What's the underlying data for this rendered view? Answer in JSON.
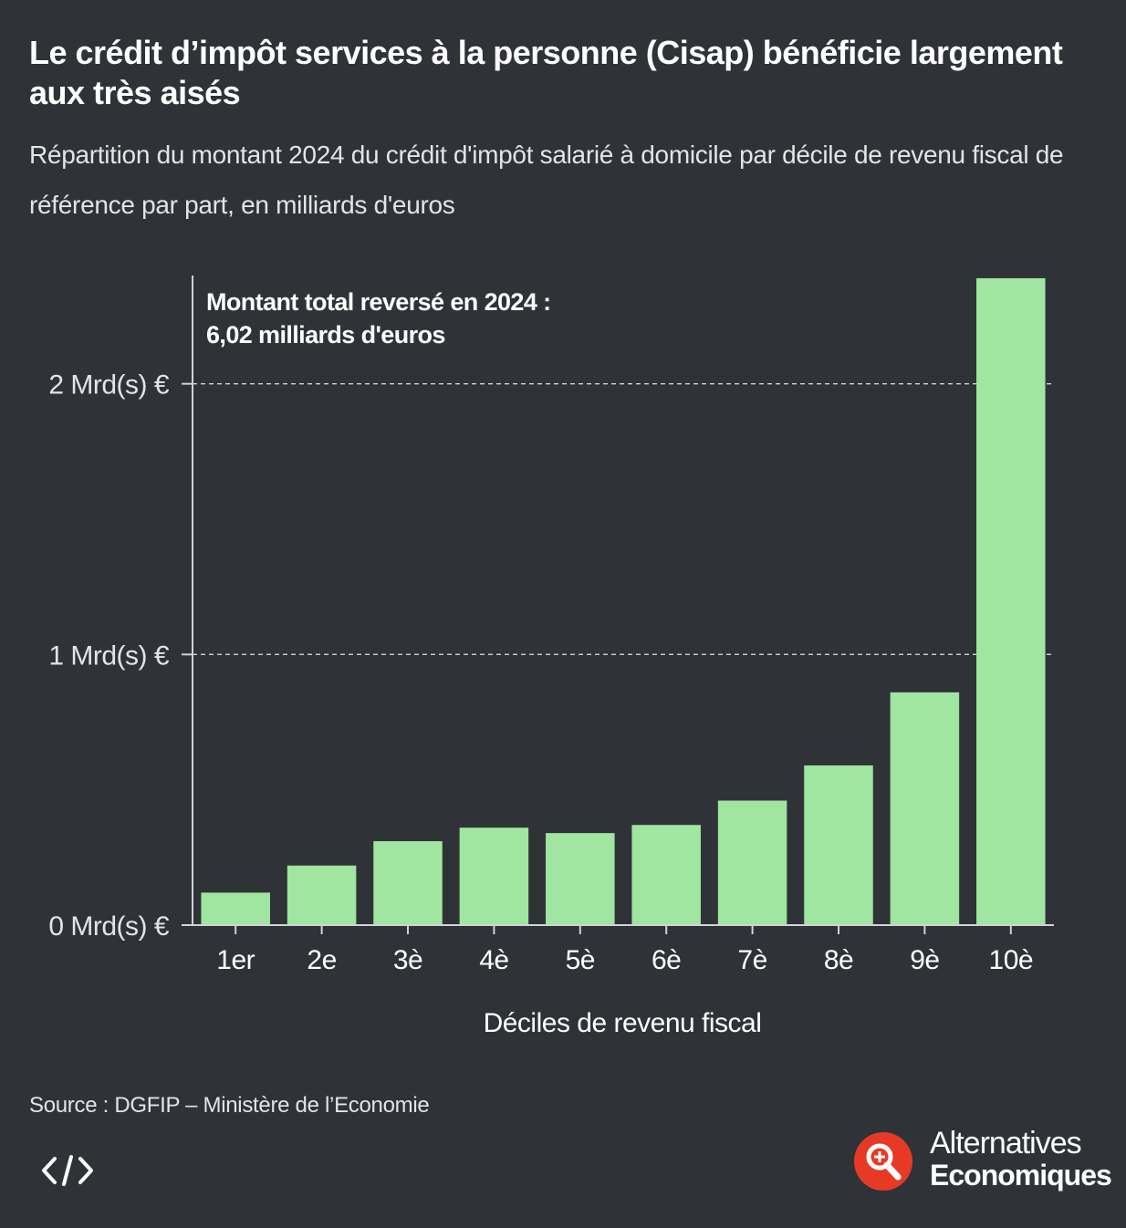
{
  "title": "Le crédit d’impôt services à la personne (Cisap) bénéficie largement aux très aisés",
  "subtitle": "Répartition du montant 2024 du crédit d'impôt salarié à domicile par décile de revenu fiscal de référence par part, en milliards d'euros",
  "annotation": {
    "line1": "Montant total reversé en 2024 :",
    "line2": "6,02 milliards d'euros"
  },
  "source": "Source : DGFIP – Ministère de l’Economie",
  "brand": {
    "line1": "Alternatives",
    "line2": "Economiques",
    "color": "#e63a27"
  },
  "embed_icon": "code-embed-icon",
  "chart_data": {
    "type": "bar",
    "categories": [
      "1er",
      "2e",
      "3è",
      "4è",
      "5è",
      "6è",
      "7è",
      "8è",
      "9è",
      "10è"
    ],
    "values": [
      0.12,
      0.22,
      0.31,
      0.36,
      0.34,
      0.37,
      0.46,
      0.59,
      0.86,
      2.39
    ],
    "xlabel": "Déciles de revenu fiscal",
    "ylabel": "",
    "ylim": [
      0,
      2.4
    ],
    "yticks": [
      {
        "value": 0,
        "label": "0 Mrd(s) €"
      },
      {
        "value": 1,
        "label": "1 Mrd(s) €"
      },
      {
        "value": 2,
        "label": "2 Mrd(s) €"
      }
    ],
    "grid": true,
    "bar_color": "#a0e5a0",
    "axis_color": "#d0d3d6",
    "text_color": "#ffffff"
  }
}
